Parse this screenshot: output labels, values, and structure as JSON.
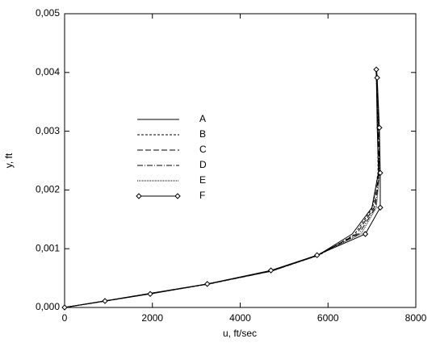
{
  "chart_data": {
    "type": "line",
    "x_label": "u, ft/sec",
    "y_label": "y, ft",
    "xlim": [
      0,
      8000
    ],
    "xticks": [
      0,
      2000,
      4000,
      6000,
      8000
    ],
    "ylim": [
      0,
      0.005
    ],
    "yticks": [
      {
        "value": 0,
        "label": "0,000"
      },
      {
        "value": 0.001,
        "label": "0,001"
      },
      {
        "value": 0.002,
        "label": "0,002"
      },
      {
        "value": 0.003,
        "label": "0,003"
      },
      {
        "value": 0.004,
        "label": "0,004"
      },
      {
        "value": 0.005,
        "label": "0,005"
      }
    ],
    "series": [
      {
        "name": "A",
        "color": "#000000",
        "dash": "none",
        "x": [
          0,
          900,
          1950,
          3250,
          4700,
          5750,
          6550,
          7000,
          7150,
          7120,
          7100
        ],
        "values": [
          0,
          0.00011,
          0.00024,
          0.0004,
          0.00062,
          0.00088,
          0.00125,
          0.0017,
          0.0023,
          0.0031,
          0.004
        ]
      },
      {
        "name": "B",
        "color": "#000000",
        "dash": "3,2",
        "x": [
          0,
          950,
          2000,
          3300,
          4750,
          5800,
          6600,
          7020,
          7140,
          7130,
          7100
        ],
        "values": [
          0,
          0.00011,
          0.00024,
          0.0004,
          0.00063,
          0.00089,
          0.00124,
          0.0017,
          0.0023,
          0.0031,
          0.004
        ]
      },
      {
        "name": "C",
        "color": "#000000",
        "dash": "7,3",
        "x": [
          0,
          920,
          1980,
          3280,
          4720,
          5780,
          6650,
          7050,
          7160,
          7140,
          7110
        ],
        "values": [
          0,
          0.00011,
          0.00024,
          0.0004,
          0.00062,
          0.00089,
          0.00125,
          0.0017,
          0.0023,
          0.0031,
          0.00402
        ]
      },
      {
        "name": "D",
        "color": "#000000",
        "dash": "7,2,1,2",
        "x": [
          0,
          930,
          1960,
          3260,
          4680,
          5720,
          6700,
          7080,
          7170,
          7150,
          7110
        ],
        "values": [
          0,
          0.00011,
          0.00024,
          0.0004,
          0.00062,
          0.00088,
          0.00125,
          0.0017,
          0.0023,
          0.0031,
          0.00403
        ]
      },
      {
        "name": "E",
        "color": "#000000",
        "dash": "1,1",
        "x": [
          0,
          940,
          1990,
          3290,
          4730,
          5760,
          6750,
          7100,
          7180,
          7160,
          7090
        ],
        "values": [
          0,
          0.00011,
          0.00024,
          0.0004,
          0.00062,
          0.00089,
          0.00125,
          0.0017,
          0.0023,
          0.0031,
          0.00404
        ]
      },
      {
        "name": "F",
        "color": "#000000",
        "dash": "none",
        "marker": "diamond",
        "x": [
          0,
          920,
          1950,
          3250,
          4700,
          5750,
          6850,
          7190,
          7190,
          7170,
          7120,
          7100
        ],
        "values": [
          0,
          0.00011,
          0.00023,
          0.0004,
          0.00063,
          0.00089,
          0.00125,
          0.0017,
          0.00229,
          0.00306,
          0.00391,
          0.00405
        ]
      }
    ]
  }
}
